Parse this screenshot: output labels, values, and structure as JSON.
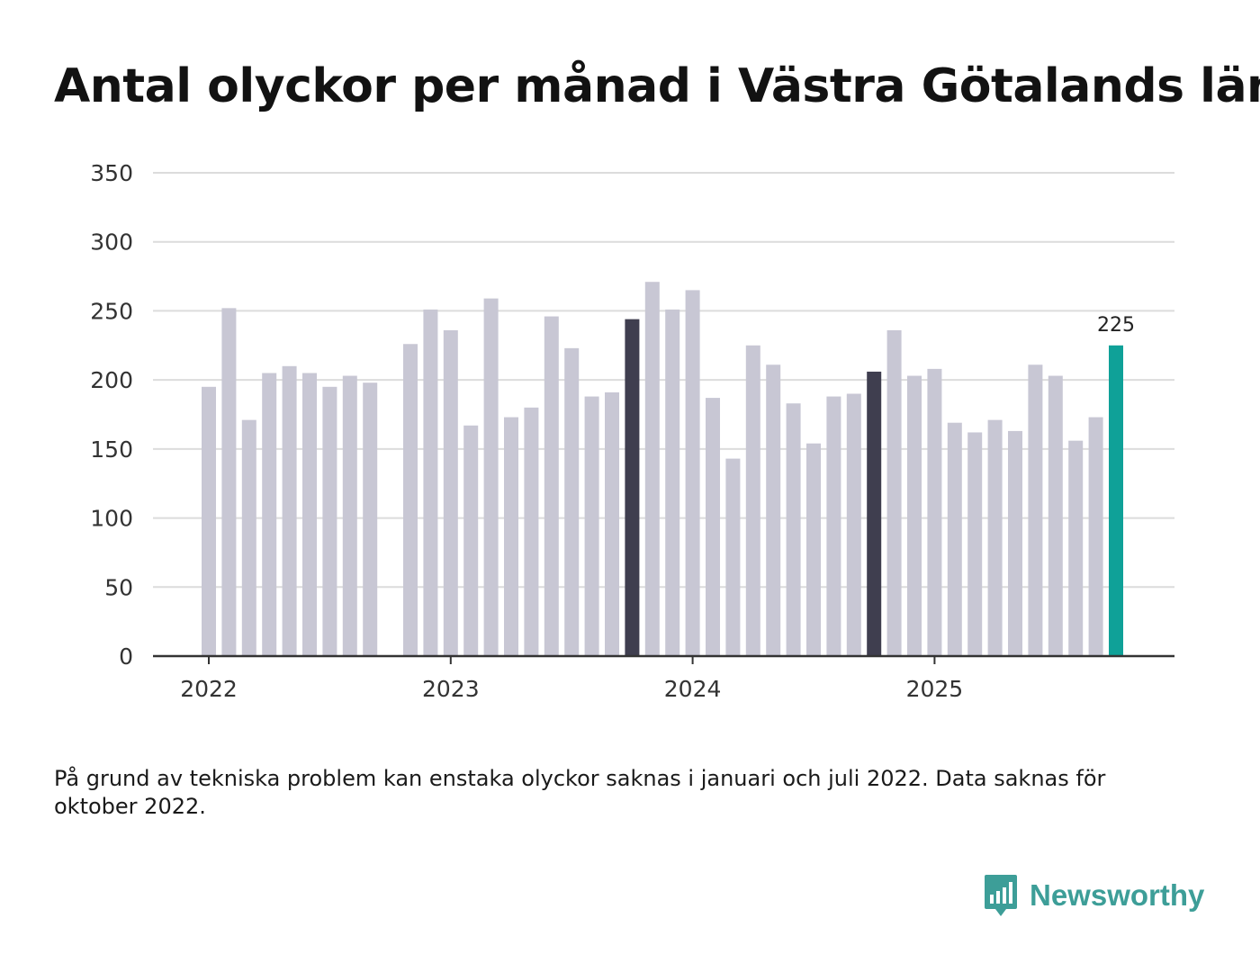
{
  "title": "Antal olyckor per månad i Västra Götalands län",
  "note": "På grund av tekniska problem kan enstaka olyckor saknas i januari och juli 2022. Data saknas för oktober 2022.",
  "brand": {
    "name": "Newsworthy",
    "icon": "newsworthy-logo-icon"
  },
  "colors": {
    "default": "#c8c7d4",
    "highlight": "#3f3e4f",
    "latest": "#0fa198",
    "grid": "#dcdcdc",
    "axis": "#333333"
  },
  "chart_data": {
    "type": "bar",
    "title": "Antal olyckor per månad i Västra Götalands län",
    "xlabel": "",
    "ylabel": "",
    "ylim": [
      0,
      350
    ],
    "yticks": [
      0,
      50,
      100,
      150,
      200,
      250,
      300,
      350
    ],
    "xtick_labels": [
      {
        "label": "2022",
        "index": 0
      },
      {
        "label": "2023",
        "index": 12
      },
      {
        "label": "2024",
        "index": 24
      },
      {
        "label": "2025",
        "index": 36
      }
    ],
    "categories": [
      "2022-01",
      "2022-02",
      "2022-03",
      "2022-04",
      "2022-05",
      "2022-06",
      "2022-07",
      "2022-08",
      "2022-09",
      "2022-10",
      "2022-11",
      "2022-12",
      "2023-01",
      "2023-02",
      "2023-03",
      "2023-04",
      "2023-05",
      "2023-06",
      "2023-07",
      "2023-08",
      "2023-09",
      "2023-10",
      "2023-11",
      "2023-12",
      "2024-01",
      "2024-02",
      "2024-03",
      "2024-04",
      "2024-05",
      "2024-06",
      "2024-07",
      "2024-08",
      "2024-09",
      "2024-10",
      "2024-11",
      "2024-12",
      "2025-01",
      "2025-02",
      "2025-03",
      "2025-04",
      "2025-05",
      "2025-06",
      "2025-07",
      "2025-08",
      "2025-09",
      "2025-10"
    ],
    "values": [
      195,
      252,
      171,
      205,
      210,
      205,
      195,
      203,
      198,
      null,
      226,
      251,
      236,
      167,
      259,
      173,
      180,
      246,
      223,
      188,
      191,
      244,
      271,
      251,
      265,
      187,
      143,
      225,
      211,
      183,
      154,
      188,
      190,
      206,
      236,
      203,
      208,
      169,
      162,
      171,
      163,
      211,
      203,
      156,
      173,
      225
    ],
    "highlighted": [
      21,
      33
    ],
    "latest_index": 45,
    "data_labels": [
      {
        "index": 45,
        "text": "225"
      }
    ]
  }
}
